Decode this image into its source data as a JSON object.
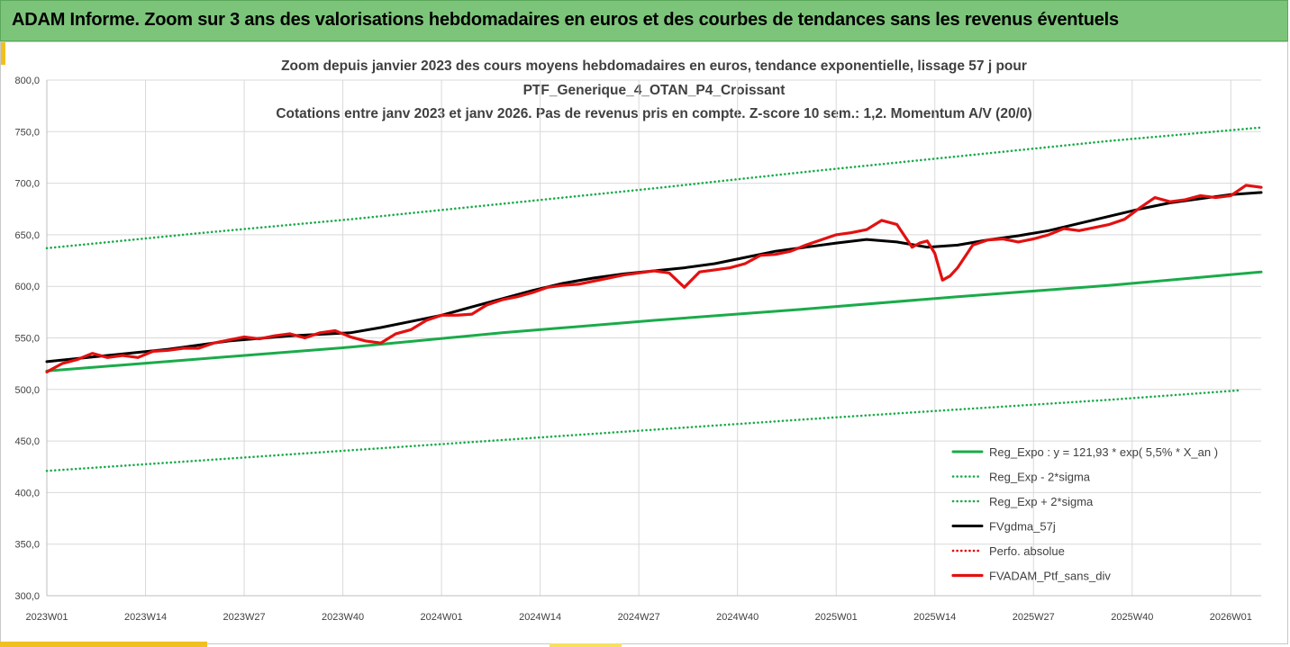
{
  "banner": {
    "title": "ADAM Informe. Zoom sur 3 ans des valorisations hebdomadaires en euros et des courbes de tendances sans les revenus éventuels"
  },
  "colors": {
    "banner_bg": "#7cc47a",
    "accent": "#f0c020",
    "reg_expo": "#1aab4a",
    "reg_band": "#1aab4a",
    "ma": "#000000",
    "perfo": "#e00000",
    "ptf": "#e31010"
  },
  "chart_data": {
    "type": "line",
    "title": [
      "Zoom depuis janvier 2023 des cours moyens hebdomadaires  en euros, tendance exponentielle, lissage 57 j pour",
      "PTF_Generique_4_OTAN_P4_Croissant",
      "Cotations entre janv 2023 et janv 2026. Pas de revenus pris en compte. Z-score 10 sem.: 1,2. Momentum A/V (20/0)"
    ],
    "ylim": [
      300,
      800
    ],
    "yticks": [
      "300,0",
      "350,0",
      "400,0",
      "450,0",
      "500,0",
      "550,0",
      "600,0",
      "650,0",
      "700,0",
      "750,0",
      "800,0"
    ],
    "xlim": [
      0,
      160
    ],
    "xticks": [
      {
        "x": 0,
        "label": "2023W01"
      },
      {
        "x": 13,
        "label": "2023W14"
      },
      {
        "x": 26,
        "label": "2023W27"
      },
      {
        "x": 39,
        "label": "2023W40"
      },
      {
        "x": 52,
        "label": "2024W01"
      },
      {
        "x": 65,
        "label": "2024W14"
      },
      {
        "x": 78,
        "label": "2024W27"
      },
      {
        "x": 91,
        "label": "2024W40"
      },
      {
        "x": 104,
        "label": "2025W01"
      },
      {
        "x": 117,
        "label": "2025W14"
      },
      {
        "x": 130,
        "label": "2025W27"
      },
      {
        "x": 143,
        "label": "2025W40"
      },
      {
        "x": 156,
        "label": "2026W01"
      }
    ],
    "grid": true,
    "legend_position": "bottom-right",
    "series": [
      {
        "name": "Reg_Expo : y = 121,93 * exp( 5,5% *  X_an )",
        "style": "solid-thick",
        "x": [
          0,
          20,
          40,
          60,
          80,
          100,
          120,
          140,
          160
        ],
        "values": [
          518,
          529.5,
          541,
          555,
          567,
          578,
          590,
          601,
          614
        ]
      },
      {
        "name": "Reg_Exp - 2*sigma",
        "style": "dotted",
        "x": [
          0,
          20,
          40,
          60,
          80,
          100,
          120,
          140,
          157
        ],
        "values": [
          421,
          431,
          441,
          451,
          461,
          471,
          480.5,
          490,
          499
        ]
      },
      {
        "name": "Reg_Exp + 2*sigma",
        "style": "dotted",
        "x": [
          0,
          20,
          40,
          60,
          80,
          100,
          120,
          140,
          160
        ],
        "values": [
          637,
          651.5,
          665,
          680,
          695,
          711,
          726,
          741,
          754
        ]
      },
      {
        "name": "FVgdma_57j",
        "style": "solid-thick",
        "x": [
          0,
          8,
          16,
          24,
          32,
          40,
          44,
          48,
          52,
          56,
          60,
          64,
          68,
          72,
          76,
          80,
          84,
          88,
          92,
          96,
          100,
          104,
          108,
          112,
          116,
          120,
          124,
          128,
          132,
          136,
          140,
          144,
          148,
          152,
          156,
          160
        ],
        "values": [
          527,
          533,
          539,
          547,
          552,
          555,
          560,
          566,
          572,
          580,
          588,
          596,
          603,
          608,
          612,
          615,
          618,
          622,
          628,
          634,
          638,
          642,
          645.5,
          643,
          638,
          640,
          645,
          649,
          654,
          661,
          668,
          675,
          681,
          685,
          689,
          691
        ]
      },
      {
        "name": "Perfo. absolue",
        "style": "dotted",
        "x": [],
        "values": []
      },
      {
        "name": "FVADAM_Ptf_sans_div",
        "style": "solid-thick",
        "x": [
          0,
          2,
          4,
          6,
          8,
          10,
          12,
          14,
          16,
          18,
          20,
          22,
          24,
          26,
          28,
          30,
          32,
          34,
          36,
          38,
          40,
          42,
          44,
          46,
          48,
          50,
          52,
          54,
          56,
          58,
          60,
          62,
          64,
          66,
          68,
          70,
          72,
          74,
          76,
          78,
          80,
          82,
          84,
          86,
          88,
          90,
          92,
          94,
          96,
          98,
          100,
          102,
          104,
          106,
          108,
          110,
          112,
          114,
          115,
          116,
          117,
          118,
          119,
          120,
          122,
          124,
          126,
          128,
          130,
          132,
          134,
          136,
          138,
          140,
          142,
          144,
          146,
          148,
          150,
          152,
          154,
          156,
          158,
          160
        ],
        "values": [
          517,
          525,
          529,
          535,
          531,
          533,
          531,
          537,
          538,
          540,
          540,
          545,
          548,
          551,
          549,
          552,
          554,
          550,
          555,
          557,
          551,
          547,
          545,
          554,
          558,
          567,
          572,
          572,
          573,
          582,
          587,
          590,
          594,
          599,
          601,
          602,
          605,
          608,
          611,
          613,
          615,
          613,
          599,
          614,
          616,
          618,
          622,
          630,
          631,
          634,
          640,
          645,
          650,
          652,
          655,
          664,
          660,
          638,
          642,
          644,
          632,
          606,
          610,
          618,
          640,
          645,
          646,
          643,
          646,
          650,
          656,
          654,
          657,
          660,
          665,
          676,
          686,
          682,
          684,
          688,
          686,
          688,
          698,
          696
        ]
      }
    ]
  }
}
